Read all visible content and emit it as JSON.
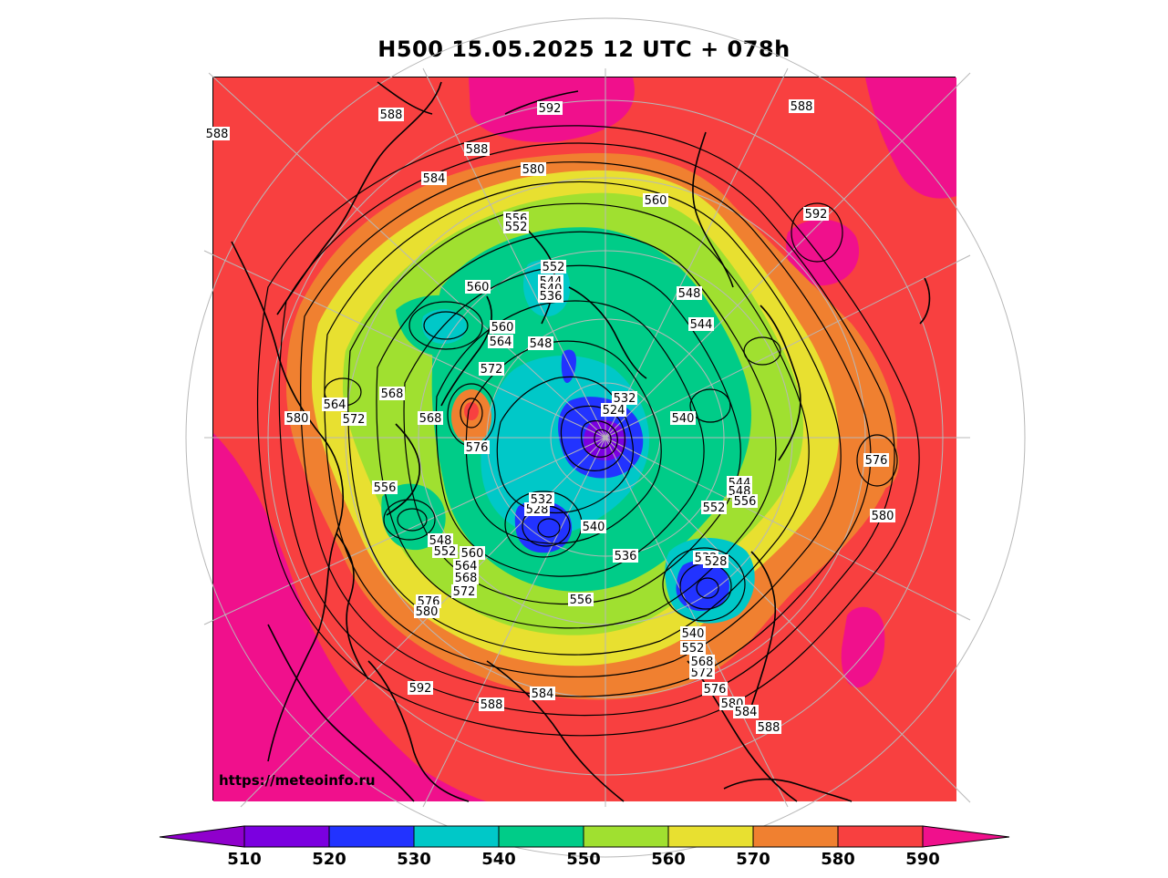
{
  "title": "H500  15.05.2025 12 UTC + 078h",
  "watermark": "https://meteoinfo.ru",
  "palette": {
    "510": "#8f00cc",
    "520": "#7b00e0",
    "530": "#2233ff",
    "540": "#00c8c8",
    "550": "#00cc88",
    "560": "#a0e030",
    "570": "#e8e030",
    "580": "#f08030",
    "590": "#f84040",
    "over": "#f0108c"
  },
  "colorbar": {
    "ticks": [
      "510",
      "520",
      "530",
      "540",
      "550",
      "560",
      "570",
      "580",
      "590"
    ]
  },
  "contour_labels": [
    "588",
    "592",
    "588",
    "588",
    "588",
    "584",
    "580",
    "560",
    "592",
    "552",
    "544",
    "540",
    "536",
    "556",
    "552",
    "560",
    "548",
    "544",
    "564",
    "560",
    "548",
    "572",
    "568",
    "564",
    "580",
    "572",
    "568",
    "532",
    "524",
    "576",
    "540",
    "556",
    "544",
    "548",
    "556",
    "552",
    "576",
    "580",
    "528",
    "532",
    "540",
    "548",
    "552",
    "560",
    "564",
    "568",
    "572",
    "536",
    "532",
    "528",
    "556",
    "576",
    "580",
    "540",
    "552",
    "572",
    "568",
    "576",
    "580",
    "584",
    "588",
    "592",
    "588",
    "584"
  ]
}
